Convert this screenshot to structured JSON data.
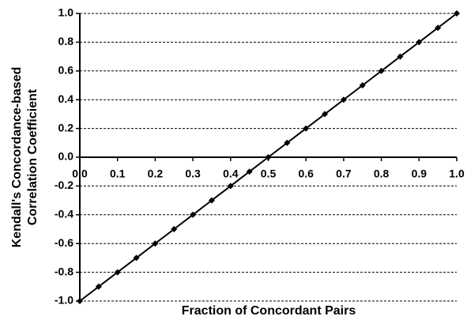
{
  "chart_data": {
    "type": "line",
    "xlabel": "Fraction of Concordant Pairs",
    "ylabel": [
      "Kendall's Concordance-based",
      "Correlation Coefficient"
    ],
    "x": [
      0,
      0.05,
      0.1,
      0.15,
      0.2,
      0.25,
      0.3,
      0.35,
      0.4,
      0.45,
      0.5,
      0.55,
      0.6,
      0.65,
      0.7,
      0.75,
      0.8,
      0.85,
      0.9,
      0.95,
      1.0
    ],
    "series": [
      {
        "color": "#000000",
        "values": [
          -1,
          -0.9,
          -0.8,
          -0.7,
          -0.6,
          -0.5,
          -0.4,
          -0.3,
          -0.2,
          -0.1,
          0,
          0.1,
          0.2,
          0.3,
          0.4,
          0.5,
          0.6,
          0.7,
          0.8,
          0.9,
          1.0
        ]
      }
    ],
    "xlim": [
      0,
      1
    ],
    "xticks": [
      {
        "value": 0,
        "label": "0.0"
      },
      0.1,
      0.2,
      0.3,
      0.4,
      0.5,
      0.6,
      0.7,
      0.8,
      0.9,
      {
        "value": 1,
        "label": "1.0"
      }
    ],
    "ylim": [
      -1,
      1
    ],
    "yticks": [
      {
        "value": -1,
        "label": "-1.0"
      },
      -0.8,
      -0.6,
      -0.4,
      -0.2,
      {
        "value": 0,
        "label": "0.0"
      },
      0.2,
      0.4,
      0.6,
      0.8,
      {
        "value": 1,
        "label": "1.0"
      }
    ],
    "grid": true
  }
}
